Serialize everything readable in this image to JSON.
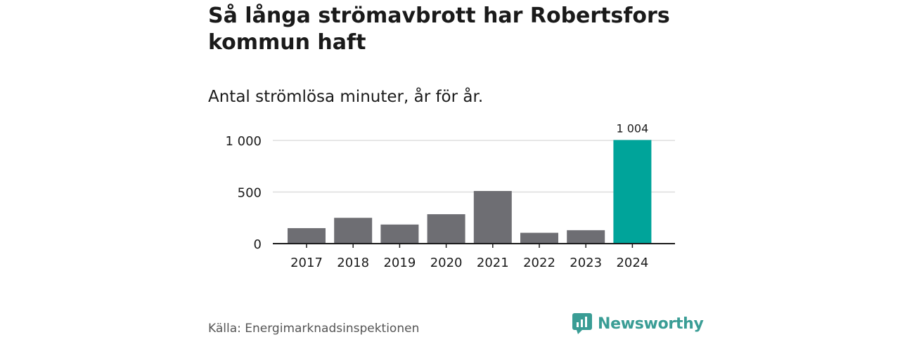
{
  "header": {
    "title": "Så långa strömavbrott har Robertsfors kommun haft",
    "subtitle": "Antal strömlösa minuter, år för år."
  },
  "footer": {
    "source": "Källa: Energimarknadsinspektionen",
    "brand": "Newsworthy",
    "brand_color": "#3a9d95"
  },
  "colors": {
    "bar_default": "#6e6e73",
    "bar_highlight": "#00a49a",
    "grid": "#dddddd",
    "axis": "#1a1a1a",
    "text": "#1a1a1a"
  },
  "chart_data": {
    "type": "bar",
    "title": "Så långa strömavbrott har Robertsfors kommun haft",
    "subtitle": "Antal strömlösa minuter, år för år.",
    "xlabel": "",
    "ylabel": "",
    "categories": [
      "2017",
      "2018",
      "2019",
      "2020",
      "2021",
      "2022",
      "2023",
      "2024"
    ],
    "values": [
      150,
      250,
      185,
      285,
      510,
      105,
      130,
      1004
    ],
    "highlight_index": 7,
    "data_labels": [
      {
        "index": 7,
        "text": "1 004"
      }
    ],
    "ylim": [
      0,
      1000
    ],
    "yticks": [
      0,
      500,
      1000
    ],
    "ytick_labels": [
      "0",
      "500",
      "1 000"
    ],
    "grid": true,
    "legend": "none"
  }
}
